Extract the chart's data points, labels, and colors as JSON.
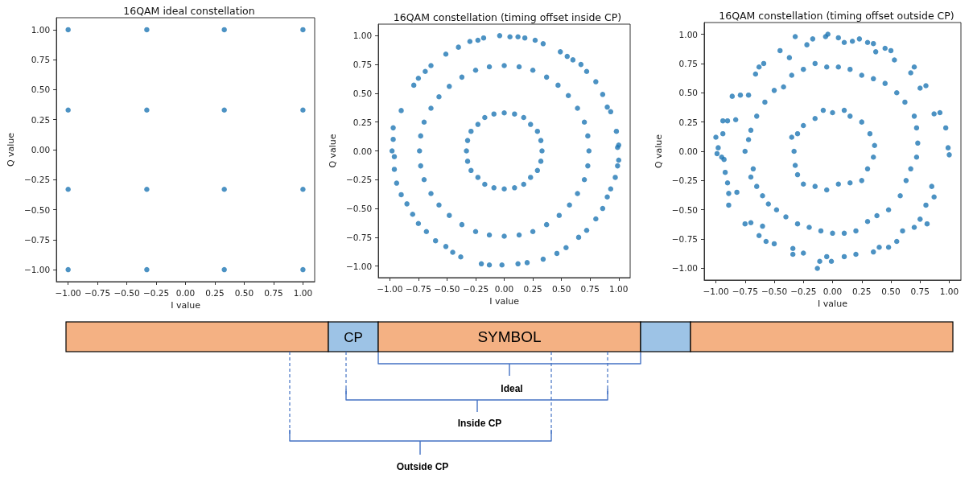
{
  "chart_data": [
    {
      "type": "scatter",
      "title": "16QAM ideal constellation",
      "xlabel": "I value",
      "ylabel": "Q value",
      "xlim": [
        -1.1,
        1.1
      ],
      "ylim": [
        -1.1,
        1.1
      ],
      "grid": false,
      "marker": "circle",
      "xticks": [
        {
          "value": -1,
          "label": "−1.00"
        },
        {
          "value": -0.75,
          "label": "−0.75"
        },
        {
          "value": -0.5,
          "label": "−0.50"
        },
        {
          "value": -0.25,
          "label": "−0.25"
        },
        {
          "value": 0,
          "label": "0.00"
        },
        {
          "value": 0.25,
          "label": "0.25"
        },
        {
          "value": 0.5,
          "label": "0.50"
        },
        {
          "value": 0.75,
          "label": "0.75"
        },
        {
          "value": 1,
          "label": "1.00"
        }
      ],
      "yticks": [
        {
          "value": -1,
          "label": "−1.00"
        },
        {
          "value": -0.75,
          "label": "−0.75"
        },
        {
          "value": -0.5,
          "label": "−0.50"
        },
        {
          "value": -0.25,
          "label": "−0.25"
        },
        {
          "value": 0,
          "label": "0.00"
        },
        {
          "value": 0.25,
          "label": "0.25"
        },
        {
          "value": 0.5,
          "label": "0.50"
        },
        {
          "value": 0.75,
          "label": "0.75"
        },
        {
          "value": 1,
          "label": "1.00"
        }
      ],
      "series": [
        {
          "color": "#1f77b4",
          "x": [
            -1,
            -0.33,
            0.33,
            1,
            -1,
            -0.33,
            0.33,
            1,
            -1,
            -0.33,
            0.33,
            1,
            -1,
            -0.33,
            0.33,
            1
          ],
          "values": [
            1,
            1,
            1,
            1,
            0.33,
            0.33,
            0.33,
            0.33,
            -0.33,
            -0.33,
            -0.33,
            -0.33,
            -1,
            -1,
            -1,
            -1
          ]
        }
      ]
    },
    {
      "type": "scatter",
      "title": "16QAM constellation (timing offset inside CP)",
      "xlabel": "I value",
      "ylabel": "Q value",
      "xlim": [
        -1.1,
        1.1
      ],
      "ylim": [
        -1.1,
        1.1
      ],
      "grid": false,
      "marker": "circle",
      "xticks": [
        {
          "value": -1,
          "label": "−1.00"
        },
        {
          "value": -0.75,
          "label": "−0.75"
        },
        {
          "value": -0.5,
          "label": "−0.50"
        },
        {
          "value": -0.25,
          "label": "−0.25"
        },
        {
          "value": 0,
          "label": "0.00"
        },
        {
          "value": 0.25,
          "label": "0.25"
        },
        {
          "value": 0.5,
          "label": "0.50"
        },
        {
          "value": 0.75,
          "label": "0.75"
        },
        {
          "value": 1,
          "label": "1.00"
        }
      ],
      "yticks": [
        {
          "value": -1,
          "label": "−1.00"
        },
        {
          "value": -0.75,
          "label": "−0.75"
        },
        {
          "value": -0.5,
          "label": "−0.50"
        },
        {
          "value": -0.25,
          "label": "−0.25"
        },
        {
          "value": 0,
          "label": "0.00"
        },
        {
          "value": 0.25,
          "label": "0.25"
        },
        {
          "value": 0.5,
          "label": "0.50"
        },
        {
          "value": 0.75,
          "label": "0.75"
        },
        {
          "value": 1,
          "label": "1.00"
        }
      ],
      "series": [
        {
          "color": "#1f77b4",
          "x": [
            -0.97,
            -0.97,
            -0.98,
            -0.96,
            -0.96,
            -0.94,
            -0.9,
            -0.85,
            -0.8,
            -0.75,
            -0.68,
            -0.6,
            -0.51,
            -0.45,
            -0.38,
            -0.2,
            -0.13,
            -0.02,
            0.12,
            0.2,
            0.34,
            0.46,
            0.54,
            0.65,
            0.72,
            0.8,
            0.86,
            0.9,
            0.93,
            0.97,
            0.99,
            1.0,
            0.99,
            1.0,
            0.98,
            0.93,
            0.9,
            0.86,
            0.8,
            0.72,
            0.67,
            0.6,
            0.55,
            0.49,
            0.34,
            0.27,
            0.18,
            0.12,
            0.05,
            -0.04,
            -0.18,
            -0.23,
            -0.3,
            -0.4,
            -0.51,
            -0.64,
            -0.69,
            -0.75,
            -0.79,
            -0.9,
            0.74,
            0.73,
            0.7,
            0.64,
            0.56,
            0.47,
            0.37,
            0.25,
            0.13,
            0,
            -0.13,
            -0.25,
            -0.37,
            -0.48,
            -0.57,
            -0.64,
            -0.7,
            -0.73,
            -0.74,
            -0.73,
            -0.7,
            -0.64,
            -0.57,
            -0.48,
            -0.37,
            -0.25,
            -0.13,
            0,
            0.13,
            0.25,
            0.37,
            0.48,
            0.57,
            0.64,
            0.7,
            0.73,
            0.33,
            0.32,
            0.29,
            0.23,
            0.17,
            0.09,
            0,
            -0.09,
            -0.17,
            -0.23,
            -0.29,
            -0.32,
            -0.33,
            -0.32,
            -0.29,
            -0.23,
            -0.17,
            -0.09,
            0,
            0.09,
            0.17,
            0.23,
            0.29,
            0.32
          ],
          "values": [
            0.2,
            0.1,
            0,
            -0.05,
            -0.16,
            -0.28,
            -0.38,
            -0.46,
            -0.55,
            -0.63,
            -0.7,
            -0.78,
            -0.83,
            -0.88,
            -0.92,
            -0.98,
            -0.99,
            -0.99,
            -0.98,
            -0.97,
            -0.94,
            -0.89,
            -0.84,
            -0.75,
            -0.69,
            -0.59,
            -0.5,
            -0.4,
            -0.33,
            -0.23,
            -0.13,
            -0.08,
            0.03,
            0.05,
            0.17,
            0.34,
            0.38,
            0.49,
            0.6,
            0.69,
            0.75,
            0.79,
            0.82,
            0.86,
            0.93,
            0.96,
            0.98,
            0.99,
            0.99,
            1.0,
            0.98,
            0.96,
            0.95,
            0.9,
            0.84,
            0.74,
            0.69,
            0.63,
            0.57,
            0.35,
            0,
            0.13,
            0.25,
            0.37,
            0.48,
            0.57,
            0.64,
            0.7,
            0.73,
            0.74,
            0.73,
            0.7,
            0.64,
            0.56,
            0.47,
            0.37,
            0.25,
            0.13,
            0,
            -0.13,
            -0.25,
            -0.37,
            -0.47,
            -0.56,
            -0.64,
            -0.7,
            -0.73,
            -0.74,
            -0.73,
            -0.7,
            -0.64,
            -0.56,
            -0.47,
            -0.37,
            -0.25,
            -0.13,
            0,
            0.09,
            0.17,
            0.23,
            0.29,
            0.32,
            0.33,
            0.32,
            0.29,
            0.23,
            0.17,
            0.09,
            0,
            -0.09,
            -0.17,
            -0.23,
            -0.29,
            -0.32,
            -0.33,
            -0.32,
            -0.29,
            -0.23,
            -0.17,
            -0.09
          ]
        }
      ]
    },
    {
      "type": "scatter",
      "title": "16QAM constellation (timing offset outside CP)",
      "xlabel": "I value",
      "ylabel": "Q value",
      "xlim": [
        -1.1,
        1.1
      ],
      "ylim": [
        -1.1,
        1.1
      ],
      "grid": false,
      "marker": "circle",
      "xticks": [
        {
          "value": -1,
          "label": "−1.00"
        },
        {
          "value": -0.75,
          "label": "−0.75"
        },
        {
          "value": -0.5,
          "label": "−0.50"
        },
        {
          "value": -0.25,
          "label": "−0.25"
        },
        {
          "value": 0,
          "label": "0.00"
        },
        {
          "value": 0.25,
          "label": "0.25"
        },
        {
          "value": 0.5,
          "label": "0.50"
        },
        {
          "value": 0.75,
          "label": "0.75"
        },
        {
          "value": 1,
          "label": "1.00"
        }
      ],
      "yticks": [
        {
          "value": -1,
          "label": "−1.00"
        },
        {
          "value": -0.75,
          "label": "−0.75"
        },
        {
          "value": -0.5,
          "label": "−0.50"
        },
        {
          "value": -0.25,
          "label": "−0.25"
        },
        {
          "value": 0,
          "label": "0.00"
        },
        {
          "value": 0.25,
          "label": "0.25"
        },
        {
          "value": 0.5,
          "label": "0.50"
        },
        {
          "value": 0.75,
          "label": "0.75"
        },
        {
          "value": 1,
          "label": "1.00"
        }
      ],
      "series": [
        {
          "color": "#1f77b4",
          "x": [
            -1.0,
            -0.98,
            -0.99,
            -0.95,
            -0.93,
            -0.92,
            -0.9,
            -0.89,
            -0.89,
            -0.82,
            -0.94,
            -0.9,
            -0.83,
            -0.94,
            -0.86,
            -0.79,
            -0.72,
            -0.66,
            -0.63,
            -0.59,
            -0.45,
            -0.37,
            -0.32,
            -0.22,
            -0.17,
            -0.06,
            -0.04,
            0.05,
            0.1,
            0.17,
            0.23,
            0.3,
            0.35,
            0.37,
            0.45,
            0.5,
            0.53,
            0.67,
            0.7,
            0.75,
            0.8,
            0.87,
            0.92,
            0.97,
            0.99,
            1.0,
            0.85,
            0.87,
            0.8,
            0.81,
            0.75,
            0.7,
            0.6,
            0.55,
            0.48,
            0.4,
            0.35,
            0.2,
            0.1,
            -0.01,
            -0.05,
            -0.11,
            -0.13,
            -0.25,
            -0.34,
            -0.34,
            -0.5,
            -0.57,
            -0.6,
            -0.63,
            -0.7,
            -0.75,
            -0.75,
            -0.72,
            -0.7,
            -0.68,
            -0.7,
            -0.65,
            -0.6,
            -0.55,
            -0.48,
            -0.4,
            -0.3,
            -0.2,
            -0.1,
            0,
            0.1,
            0.2,
            0.3,
            0.38,
            0.48,
            0.58,
            0.63,
            0.67,
            0.72,
            0.73,
            0.72,
            0.7,
            0.62,
            0.55,
            0.45,
            0.35,
            0.25,
            0.15,
            0.05,
            -0.05,
            -0.15,
            -0.25,
            -0.35,
            -0.42,
            -0.5,
            -0.58,
            -0.65,
            -0.35,
            -0.33,
            -0.32,
            -0.3,
            -0.25,
            -0.15,
            -0.05,
            0.05,
            0.15,
            0.25,
            0.3,
            0.35,
            0.36,
            0.32,
            0.25,
            0.15,
            0.1,
            0.0,
            -0.08,
            -0.15,
            -0.25,
            -0.3
          ],
          "values": [
            0.12,
            0.03,
            -0.02,
            -0.05,
            -0.07,
            -0.18,
            -0.27,
            -0.36,
            -0.46,
            -0.35,
            0.26,
            0.26,
            0.27,
            0.15,
            0.47,
            0.48,
            0.48,
            0.66,
            0.72,
            0.75,
            0.86,
            0.8,
            0.98,
            0.91,
            0.96,
            0.98,
            1.0,
            0.97,
            0.93,
            0.94,
            0.96,
            0.93,
            0.92,
            0.85,
            0.88,
            0.86,
            0.78,
            0.67,
            0.72,
            0.54,
            0.56,
            0.32,
            0.33,
            0.2,
            0.03,
            -0.03,
            -0.3,
            -0.39,
            -0.46,
            -0.62,
            -0.58,
            -0.65,
            -0.68,
            -0.77,
            -0.82,
            -0.82,
            -0.86,
            -0.88,
            -0.9,
            -0.94,
            -0.9,
            -0.94,
            -1.0,
            -0.87,
            -0.88,
            -0.83,
            -0.79,
            -0.77,
            -0.64,
            -0.72,
            -0.61,
            -0.62,
            0.0,
            0.1,
            0.18,
            -0.15,
            -0.22,
            -0.3,
            -0.38,
            -0.45,
            -0.5,
            -0.56,
            -0.62,
            -0.65,
            -0.68,
            -0.7,
            -0.7,
            -0.68,
            -0.6,
            -0.55,
            -0.5,
            -0.38,
            -0.25,
            -0.15,
            -0.05,
            0.07,
            0.2,
            0.3,
            0.42,
            0.5,
            0.58,
            0.62,
            0.65,
            0.7,
            0.72,
            0.72,
            0.75,
            0.7,
            0.65,
            0.55,
            0.52,
            0.42,
            0.3,
            0.12,
            0.0,
            -0.12,
            -0.2,
            -0.28,
            -0.3,
            -0.33,
            -0.28,
            -0.27,
            -0.25,
            -0.15,
            -0.05,
            0.05,
            0.15,
            0.25,
            0.3,
            0.35,
            0.33,
            0.35,
            0.28,
            0.22,
            0.15
          ]
        }
      ]
    },
    {
      "type": "other",
      "annotations": [
        "CP",
        "SYMBOL",
        "Ideal",
        "Inside CP",
        "Outside CP"
      ]
    }
  ]
}
